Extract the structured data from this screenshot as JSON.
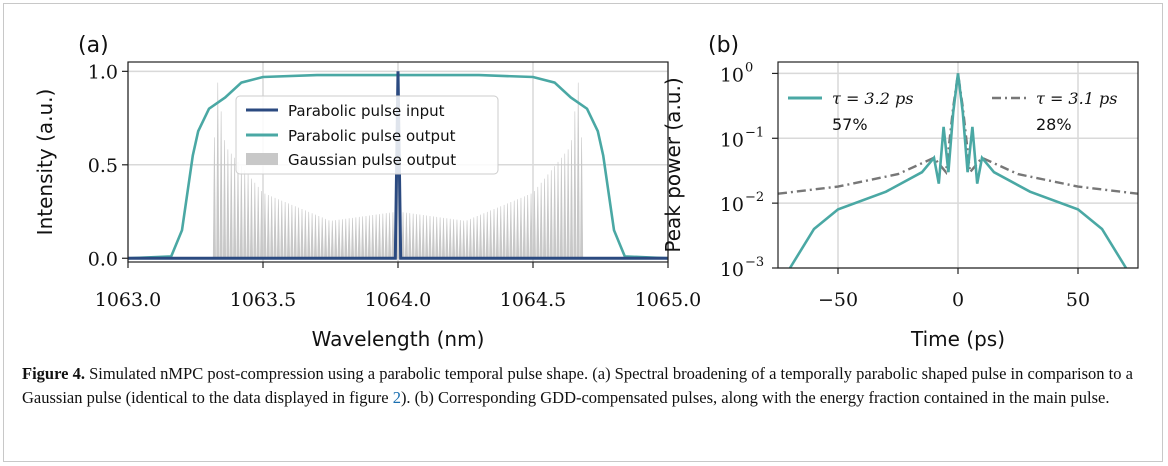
{
  "figure": {
    "caption_label": "Figure 4.",
    "caption_part1": " Simulated nMPC post-compression using a parabolic temporal pulse shape. (a) Spectral broadening of a temporally parabolic shaped pulse in comparison to a Gaussian pulse (identical to the data displayed in figure ",
    "caption_ref": "2",
    "caption_part2": "). (b) Corresponding GDD-compensated pulses, along with the energy fraction contained in the main pulse."
  },
  "colors": {
    "input": "#2b4a80",
    "output": "#4aa8a4",
    "gaussian": "#c8c8c8",
    "dashed": "#777777",
    "grid": "#d9d9d9"
  },
  "chart_data": [
    {
      "panel_label": "(a)",
      "type": "line",
      "xlabel": "Wavelength (nm)",
      "ylabel": "Intensity (a.u.)",
      "xlim": [
        1063.0,
        1065.0
      ],
      "ylim": [
        -0.02,
        1.05
      ],
      "xticks": [
        "1063.0",
        "1063.5",
        "1064.0",
        "1064.5",
        "1065.0"
      ],
      "yticks": [
        "0.0",
        "0.5",
        "1.0"
      ],
      "grid": true,
      "legend_placement": "top-center",
      "series": [
        {
          "name": "Parabolic pulse input",
          "points": [
            [
              1063.0,
              0.0
            ],
            [
              1063.99,
              0.0
            ],
            [
              1064.0,
              1.0
            ],
            [
              1064.01,
              0.0
            ],
            [
              1065.0,
              0.0
            ]
          ]
        },
        {
          "name": "Parabolic pulse output",
          "points": [
            [
              1063.0,
              0.0
            ],
            [
              1063.16,
              0.01
            ],
            [
              1063.2,
              0.15
            ],
            [
              1063.24,
              0.55
            ],
            [
              1063.26,
              0.68
            ],
            [
              1063.3,
              0.8
            ],
            [
              1063.36,
              0.86
            ],
            [
              1063.42,
              0.94
            ],
            [
              1063.5,
              0.97
            ],
            [
              1063.7,
              0.98
            ],
            [
              1064.0,
              0.98
            ],
            [
              1064.3,
              0.98
            ],
            [
              1064.5,
              0.97
            ],
            [
              1064.58,
              0.94
            ],
            [
              1064.64,
              0.86
            ],
            [
              1064.7,
              0.8
            ],
            [
              1064.74,
              0.68
            ],
            [
              1064.76,
              0.55
            ],
            [
              1064.8,
              0.15
            ],
            [
              1064.84,
              0.01
            ],
            [
              1065.0,
              0.0
            ]
          ]
        },
        {
          "name": "Gaussian pulse output",
          "points": [
            [
              1063.3,
              0.0
            ],
            [
              1063.33,
              0.97
            ],
            [
              1063.36,
              0.6
            ],
            [
              1063.5,
              0.35
            ],
            [
              1063.75,
              0.2
            ],
            [
              1064.0,
              0.25
            ],
            [
              1064.25,
              0.2
            ],
            [
              1064.5,
              0.35
            ],
            [
              1064.64,
              0.6
            ],
            [
              1064.67,
              0.97
            ],
            [
              1064.7,
              0.0
            ]
          ]
        }
      ]
    },
    {
      "panel_label": "(b)",
      "type": "line",
      "xlabel": "Time (ps)",
      "ylabel": "Peak power (a.u.)",
      "yscale": "log",
      "xlim": [
        -75,
        75
      ],
      "ylim": [
        0.001,
        1.5
      ],
      "xticks": [
        "−50",
        "0",
        "50"
      ],
      "yticks_base": [
        "10",
        "10",
        "10",
        "10"
      ],
      "yticks_exp": [
        "0",
        "−1",
        "−2",
        "−3"
      ],
      "grid": true,
      "legend_placement": "top",
      "series": [
        {
          "tau_label": "τ = 3.2 ps",
          "fraction": "57%",
          "points": [
            [
              -70,
              0.001
            ],
            [
              -60,
              0.004
            ],
            [
              -50,
              0.008
            ],
            [
              -30,
              0.015
            ],
            [
              -15,
              0.03
            ],
            [
              -10,
              0.05
            ],
            [
              -8,
              0.02
            ],
            [
              -6,
              0.15
            ],
            [
              -4,
              0.03
            ],
            [
              -2,
              0.25
            ],
            [
              0,
              1.0
            ],
            [
              2,
              0.25
            ],
            [
              4,
              0.03
            ],
            [
              6,
              0.15
            ],
            [
              8,
              0.02
            ],
            [
              10,
              0.05
            ],
            [
              15,
              0.03
            ],
            [
              30,
              0.015
            ],
            [
              50,
              0.008
            ],
            [
              60,
              0.004
            ],
            [
              70,
              0.001
            ]
          ]
        },
        {
          "tau_label": "τ = 3.1 ps",
          "fraction": "28%",
          "points": [
            [
              -75,
              0.014
            ],
            [
              -50,
              0.018
            ],
            [
              -25,
              0.028
            ],
            [
              -10,
              0.05
            ],
            [
              -5,
              0.03
            ],
            [
              -2,
              0.3
            ],
            [
              0,
              1.0
            ],
            [
              2,
              0.3
            ],
            [
              5,
              0.03
            ],
            [
              10,
              0.05
            ],
            [
              25,
              0.028
            ],
            [
              50,
              0.018
            ],
            [
              75,
              0.014
            ]
          ]
        }
      ]
    }
  ]
}
